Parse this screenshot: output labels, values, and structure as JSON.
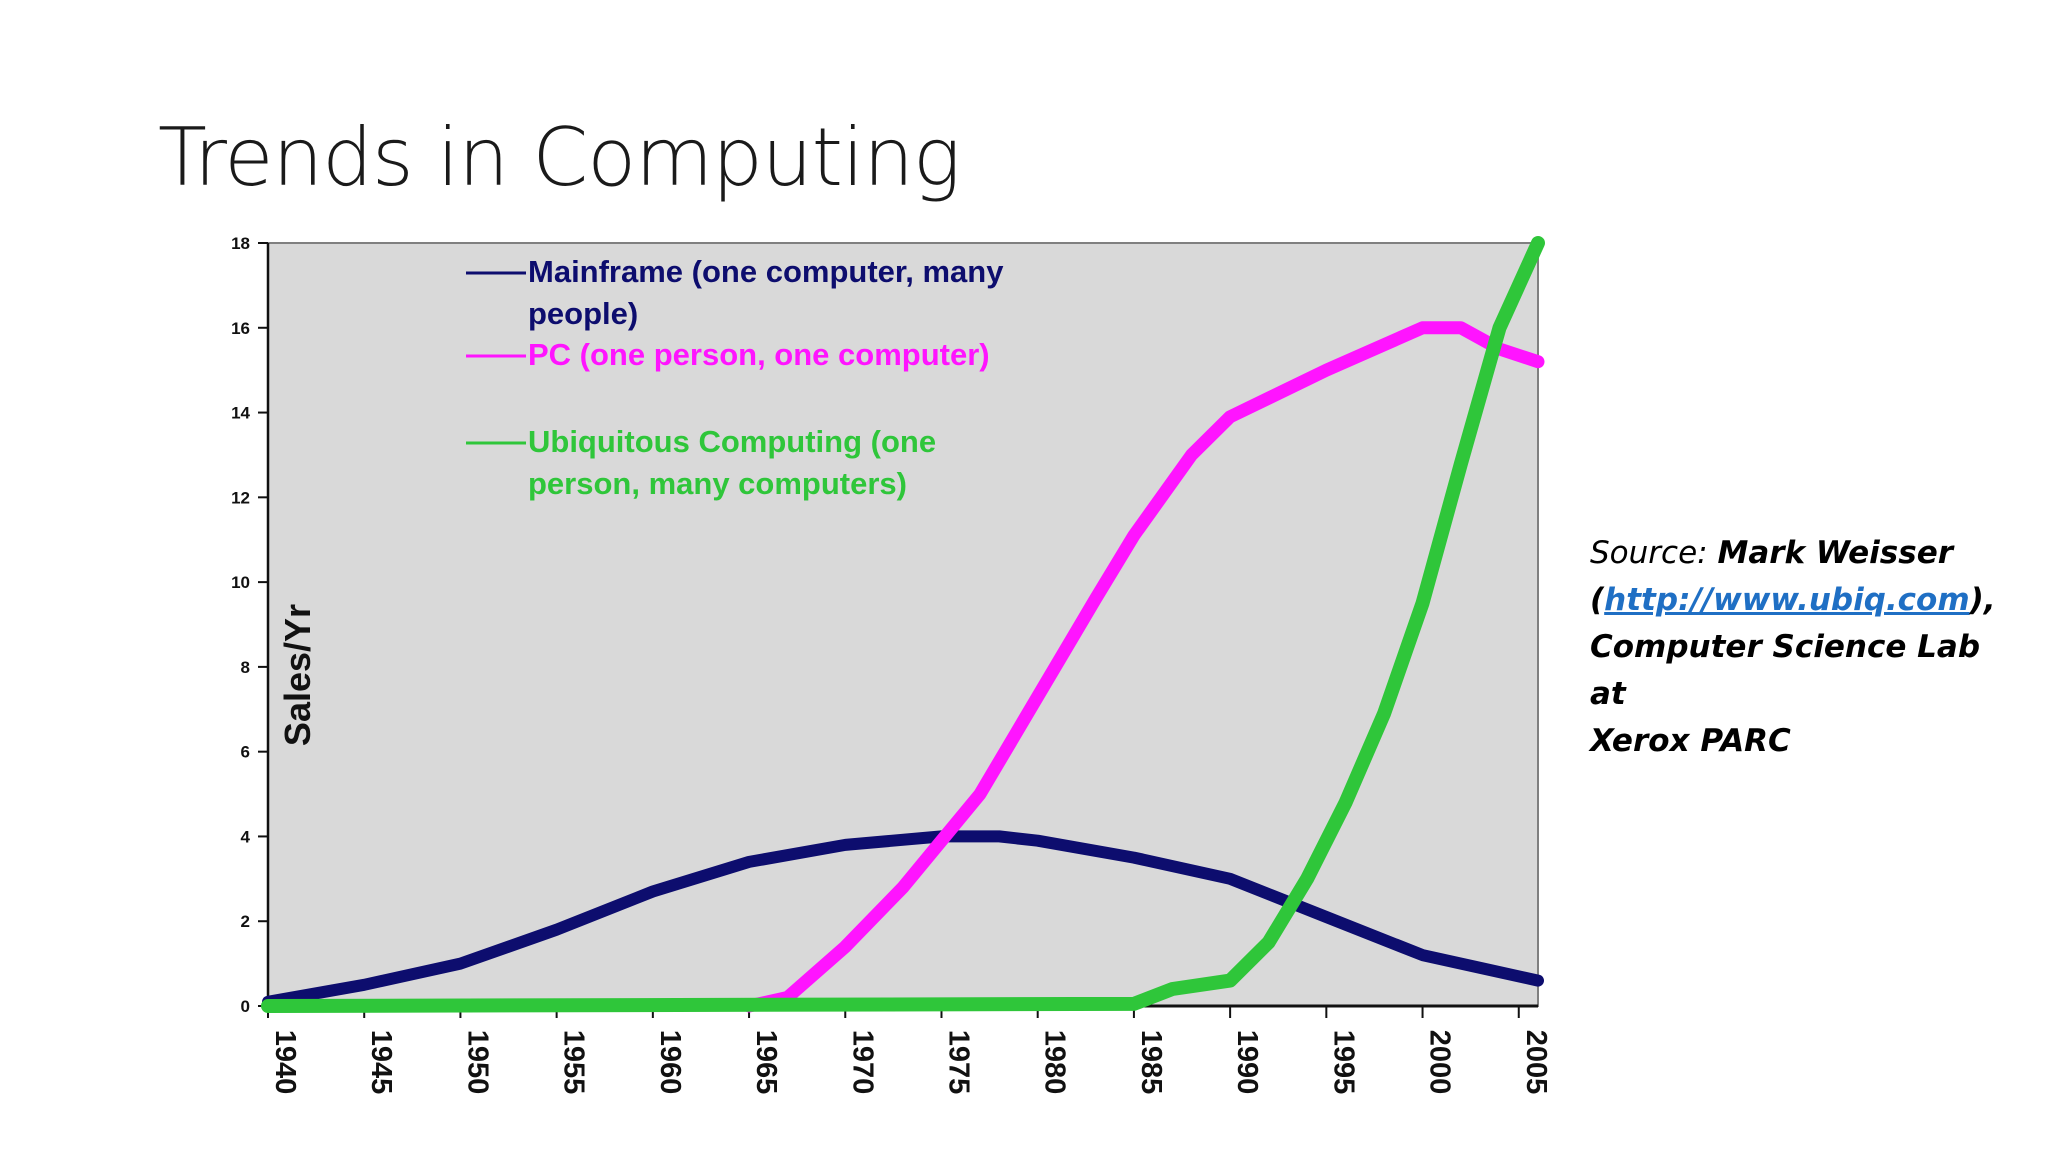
{
  "slide": {
    "title": "Trends in Computing"
  },
  "source": {
    "label": "Source:",
    "author": "Mark Weisser",
    "open_paren": "(",
    "url": "http://www.ubiq.com",
    "close_paren": "),",
    "org_line1": "Computer Science Lab at",
    "org_line2": "Xerox PARC"
  },
  "colors": {
    "plot_bg": "#d9d9d9",
    "mainframe": "#0d0d6e",
    "pc": "#ff14ff",
    "ubicomp": "#2fc63a",
    "link": "#1f6fc4"
  },
  "chart_data": {
    "type": "line",
    "ylabel": "Sales/Yr",
    "xlim": [
      1940,
      2006
    ],
    "ylim": [
      0,
      18
    ],
    "x_ticks": [
      1940,
      1945,
      1950,
      1955,
      1960,
      1965,
      1970,
      1975,
      1980,
      1985,
      1990,
      1995,
      2000,
      2005
    ],
    "y_ticks": [
      0,
      2,
      4,
      6,
      8,
      10,
      12,
      14,
      16,
      18
    ],
    "grid": false,
    "legend_position": "top-left",
    "series": [
      {
        "name": "Mainframe (one computer, many people)",
        "legend_lines": [
          "Mainframe (one computer, many",
          "people)"
        ],
        "color": "#0d0d6e",
        "x": [
          1940,
          1945,
          1950,
          1955,
          1960,
          1965,
          1970,
          1975,
          1978,
          1980,
          1985,
          1990,
          1995,
          2000,
          2003,
          2006
        ],
        "y": [
          0.1,
          0.5,
          1.0,
          1.8,
          2.7,
          3.4,
          3.8,
          4.0,
          4.0,
          3.9,
          3.5,
          3.0,
          2.1,
          1.2,
          0.9,
          0.6
        ]
      },
      {
        "name": "PC (one person, one computer)",
        "legend_lines": [
          "PC (one person, one computer)"
        ],
        "color": "#ff14ff",
        "x": [
          1965,
          1967,
          1970,
          1973,
          1975,
          1977,
          1980,
          1983,
          1985,
          1988,
          1990,
          1995,
          2000,
          2002,
          2004,
          2006
        ],
        "y": [
          0,
          0.2,
          1.4,
          2.8,
          3.9,
          5.0,
          7.3,
          9.6,
          11.1,
          13.0,
          13.9,
          15.0,
          16.0,
          16.0,
          15.5,
          15.2
        ]
      },
      {
        "name": "Ubiquitous Computing (one person, many computers)",
        "legend_lines": [
          "Ubiquitous Computing (one",
          "person, many computers)"
        ],
        "color": "#2fc63a",
        "x": [
          1940,
          1985,
          1987,
          1990,
          1992,
          1994,
          1996,
          1998,
          2000,
          2002,
          2004,
          2006
        ],
        "y": [
          0,
          0.05,
          0.4,
          0.6,
          1.5,
          3.0,
          4.8,
          6.9,
          9.5,
          12.8,
          16.0,
          18.0
        ]
      }
    ]
  }
}
